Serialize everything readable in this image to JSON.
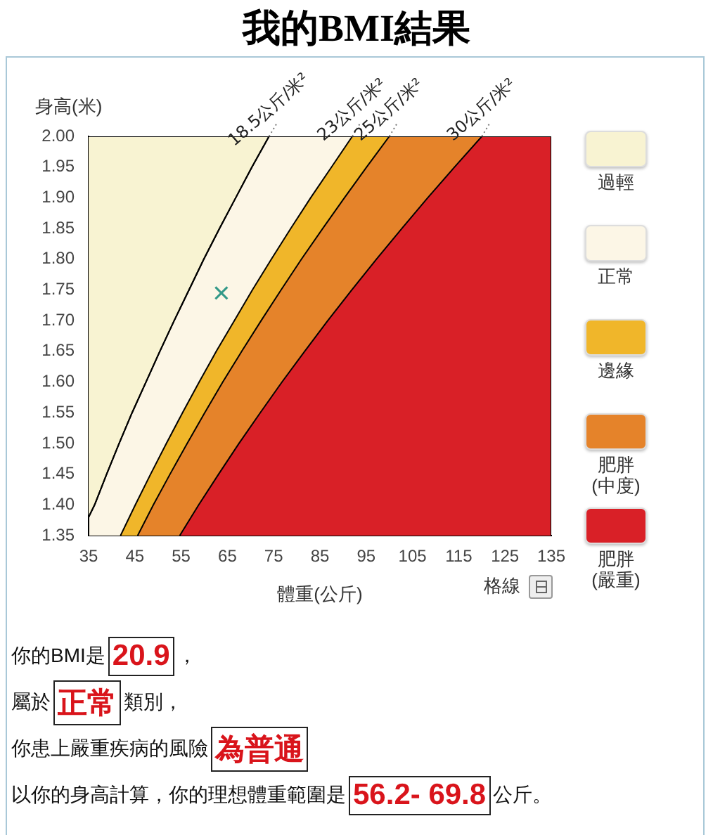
{
  "chart_data": {
    "type": "area",
    "title": "我的BMI結果",
    "xlabel": "體重(公斤)",
    "ylabel": "身高(米)",
    "xlim": [
      35,
      135
    ],
    "xticks": [
      35,
      45,
      55,
      65,
      75,
      85,
      95,
      105,
      115,
      125,
      135
    ],
    "ylim": [
      1.35,
      2.0
    ],
    "yticks": [
      {
        "value": 1.35,
        "label": "1.35"
      },
      {
        "value": 1.4,
        "label": "1.40"
      },
      {
        "value": 1.45,
        "label": "1.45"
      },
      {
        "value": 1.5,
        "label": "1.50"
      },
      {
        "value": 1.55,
        "label": "1.55"
      },
      {
        "value": 1.6,
        "label": "1.60"
      },
      {
        "value": 1.65,
        "label": "1.65"
      },
      {
        "value": 1.7,
        "label": "1.70"
      },
      {
        "value": 1.75,
        "label": "1.75"
      },
      {
        "value": 1.8,
        "label": "1.80"
      },
      {
        "value": 1.85,
        "label": "1.85"
      },
      {
        "value": 1.9,
        "label": "1.90"
      },
      {
        "value": 1.95,
        "label": "1.95"
      },
      {
        "value": 2.0,
        "label": "2.00"
      }
    ],
    "legend": "right",
    "series": [
      {
        "name": "過輕",
        "color": "#f8f3d2",
        "x": [
          35,
          36.3,
          38.9,
          41.6,
          44.4,
          47.4,
          50.4,
          53.5,
          56.7,
          59.9,
          63.3,
          66.8,
          70.3,
          74.0,
          35
        ],
        "values": [
          1.38,
          1.4,
          1.45,
          1.5,
          1.55,
          1.6,
          1.65,
          1.7,
          1.75,
          1.8,
          1.85,
          1.9,
          1.95,
          2.0,
          2.0
        ]
      },
      {
        "name": "正常",
        "color": "#fcf6e6",
        "x": [
          35,
          35,
          36.3,
          38.9,
          41.6,
          44.4,
          47.4,
          50.4,
          53.5,
          56.7,
          59.9,
          63.3,
          66.8,
          70.3,
          74.0,
          135,
          135
        ],
        "values": [
          1.35,
          1.38,
          1.4,
          1.45,
          1.5,
          1.55,
          1.6,
          1.65,
          1.7,
          1.75,
          1.8,
          1.85,
          1.9,
          1.95,
          2.0,
          2.0,
          1.35
        ]
      },
      {
        "name": "邊緣",
        "color": "#f0b62a",
        "x": [
          41.9,
          45.1,
          48.4,
          51.8,
          55.3,
          58.9,
          62.6,
          66.5,
          70.4,
          74.5,
          78.7,
          83.0,
          87.5,
          92.0,
          135,
          135
        ],
        "values": [
          1.35,
          1.4,
          1.45,
          1.5,
          1.55,
          1.6,
          1.65,
          1.7,
          1.75,
          1.8,
          1.85,
          1.9,
          1.95,
          2.0,
          2.0,
          1.35
        ]
      },
      {
        "name": "肥胖(中度)",
        "color": "#e5832a",
        "x": [
          45.6,
          49.0,
          52.6,
          56.3,
          60.1,
          64.0,
          68.1,
          72.3,
          76.6,
          81.0,
          85.6,
          90.3,
          95.1,
          100.0,
          135,
          135
        ],
        "values": [
          1.35,
          1.4,
          1.45,
          1.5,
          1.55,
          1.6,
          1.65,
          1.7,
          1.75,
          1.8,
          1.85,
          1.9,
          1.95,
          2.0,
          2.0,
          1.35
        ]
      },
      {
        "name": "肥胖(嚴重)",
        "color": "#d92027",
        "x": [
          54.7,
          58.8,
          63.1,
          67.5,
          72.1,
          76.8,
          81.7,
          86.7,
          91.9,
          97.2,
          102.7,
          108.3,
          114.1,
          120.0,
          135,
          135
        ],
        "values": [
          1.35,
          1.4,
          1.45,
          1.5,
          1.55,
          1.6,
          1.65,
          1.7,
          1.75,
          1.8,
          1.85,
          1.9,
          1.95,
          2.0,
          2.0,
          1.35
        ]
      },
      {
        "type": "scatter",
        "marker": "cross",
        "color": "#339988",
        "x": [
          63.7
        ],
        "values": [
          1.745
        ]
      }
    ],
    "annotations": [
      {
        "text": "18.5公斤/米²",
        "x": 74.0,
        "y": 2.0
      },
      {
        "text": "23公斤/米²",
        "x": 92.0,
        "y": 2.0
      },
      {
        "text": "25公斤/米²",
        "x": 100.0,
        "y": 2.0
      },
      {
        "text": "30公斤/米²",
        "x": 120.0,
        "y": 2.0
      },
      "格線",
      "你的BMI是",
      "20.9",
      "，",
      "屬於",
      "正常",
      "類別，",
      "你患上嚴重疾病的風險",
      "為普通",
      "以你的身高計算，你的理想體重範圍是",
      "56.2- 69.8",
      "公斤。"
    ]
  }
}
